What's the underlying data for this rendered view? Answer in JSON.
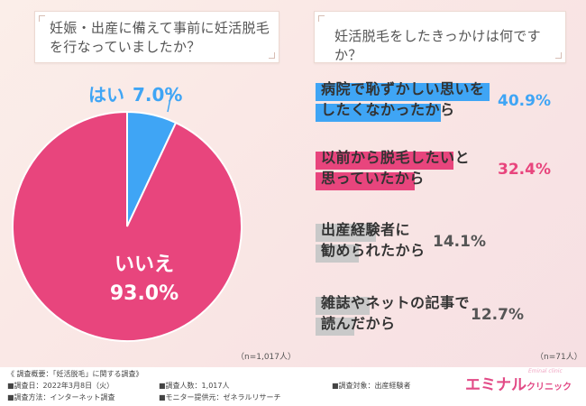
{
  "questions": {
    "q1": "妊娠・出産に備えて事前に妊活脱毛を行なっていましたか？",
    "q2": "妊活脱毛をしたきっかけは何ですか？"
  },
  "chart_data": [
    {
      "type": "pie",
      "categories": [
        "はい",
        "いいえ"
      ],
      "values": [
        7.0,
        93.0
      ],
      "value_labels": [
        "7.0%",
        "93.0%"
      ],
      "colors": [
        "#3fa5f5",
        "#e8457d"
      ],
      "note": "（n=1,017人）"
    },
    {
      "type": "bar",
      "categories": [
        "病院で恥ずかしい思いをしたくなかったから",
        "以前から脱毛したいと思っていたから",
        "出産経験者に勧められたから",
        "雑誌やネットの記事で読んだから"
      ],
      "display_lines": [
        [
          "病院で恥ずかしい思いを",
          "したくなかったから"
        ],
        [
          "以前から脱毛したいと",
          "思っていたから"
        ],
        [
          "出産経験者に",
          "勧められたから"
        ],
        [
          "雑誌やネットの記事で",
          "読んだから"
        ]
      ],
      "values": [
        40.9,
        32.4,
        14.1,
        12.7
      ],
      "value_labels": [
        "40.9%",
        "32.4%",
        "14.1%",
        "12.7%"
      ],
      "colors": [
        "#3fa5f5",
        "#e8457d",
        "#c9c9c9",
        "#c9c9c9"
      ],
      "text_colors": [
        "#3fa5f5",
        "#e8457d",
        "#555555",
        "#555555"
      ],
      "note": "（n=71人）"
    }
  ],
  "footer": {
    "summary": "《 調査概要：「妊活脱毛」に関する調査》",
    "date": "■調査日：2022年3月8日（火）",
    "count": "■調査人数：1,017人",
    "target": "■調査対象：出産経験者",
    "method": "■調査方法：インターネット調査",
    "provider": "■モニター提供元：ゼネラルリサーチ"
  },
  "brand": {
    "name": "エミナル",
    "suffix": "クリニック",
    "sub": "Eminal clinic"
  }
}
